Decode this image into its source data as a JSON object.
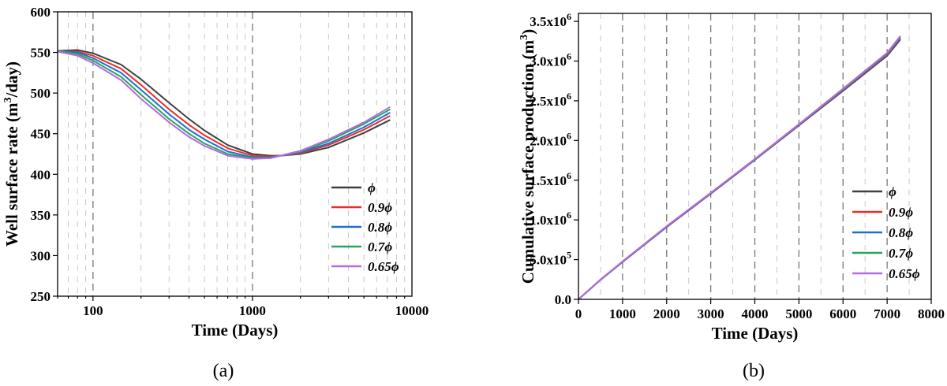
{
  "chart_data": [
    {
      "type": "line",
      "panel_label": "(a)",
      "xlabel": "Time (Days)",
      "ylabel_main": "Well surface rate (m",
      "ylabel_sup": "3",
      "ylabel_tail": "/day)",
      "xscale": "log",
      "xlim": [
        60,
        10000
      ],
      "ylim": [
        250,
        600
      ],
      "x_ticks": [
        100,
        1000,
        10000
      ],
      "x_tick_labels": [
        "100",
        "1000",
        "10000"
      ],
      "y_ticks": [
        250,
        300,
        350,
        400,
        450,
        500,
        550,
        600
      ],
      "y_tick_labels": [
        "250",
        "300",
        "350",
        "400",
        "450",
        "500",
        "550",
        "600"
      ],
      "grid": "vertical dashed",
      "legend_position": "bottom-right",
      "series": [
        {
          "name": "ϕ",
          "color": "#404040",
          "x": [
            60,
            80,
            100,
            150,
            200,
            300,
            400,
            500,
            700,
            1000,
            1300,
            1500,
            2000,
            3000,
            5000,
            7300
          ],
          "y": [
            552,
            553,
            549,
            535,
            517,
            488,
            468,
            454,
            436,
            425,
            423,
            423,
            425,
            433,
            451,
            467
          ]
        },
        {
          "name": "0.9ϕ",
          "color": "#e8302a",
          "x": [
            60,
            80,
            100,
            150,
            200,
            300,
            400,
            500,
            700,
            1000,
            1300,
            1500,
            2000,
            3000,
            5000,
            7300
          ],
          "y": [
            552,
            551,
            546,
            530,
            510,
            480,
            461,
            448,
            432,
            423,
            422,
            423,
            426,
            436,
            455,
            472
          ]
        },
        {
          "name": "0.8ϕ",
          "color": "#1f6fd1",
          "x": [
            60,
            80,
            100,
            150,
            200,
            300,
            400,
            500,
            700,
            1000,
            1300,
            1500,
            2000,
            3000,
            5000,
            7300
          ],
          "y": [
            552,
            550,
            543,
            525,
            504,
            474,
            455,
            443,
            428,
            421,
            421,
            423,
            427,
            438,
            458,
            476
          ]
        },
        {
          "name": "0.7ϕ",
          "color": "#2ca25f",
          "x": [
            60,
            80,
            100,
            150,
            200,
            300,
            400,
            500,
            700,
            1000,
            1300,
            1500,
            2000,
            3000,
            5000,
            7300
          ],
          "y": [
            552,
            548,
            540,
            520,
            498,
            468,
            450,
            438,
            425,
            420,
            420,
            423,
            428,
            441,
            462,
            480
          ]
        },
        {
          "name": "0.65ϕ",
          "color": "#b36be3",
          "x": [
            60,
            80,
            100,
            150,
            200,
            300,
            400,
            500,
            700,
            1000,
            1300,
            1500,
            2000,
            3000,
            5000,
            7300
          ],
          "y": [
            551,
            546,
            537,
            516,
            493,
            464,
            446,
            435,
            423,
            419,
            420,
            423,
            429,
            443,
            464,
            483
          ]
        }
      ]
    },
    {
      "type": "line",
      "panel_label": "(b)",
      "xlabel": "Time (Days)",
      "ylabel_main": "Cumulative surface production (m",
      "ylabel_sup": "3",
      "ylabel_tail": ")",
      "xlim": [
        0,
        8000
      ],
      "ylim": [
        0,
        3600000
      ],
      "x_ticks": [
        0,
        1000,
        2000,
        3000,
        4000,
        5000,
        6000,
        7000,
        8000
      ],
      "x_tick_labels": [
        "0",
        "1000",
        "2000",
        "3000",
        "4000",
        "5000",
        "6000",
        "7000",
        "8000"
      ],
      "y_ticks": [
        0,
        500000,
        1000000,
        1500000,
        2000000,
        2500000,
        3000000,
        3500000
      ],
      "y_tick_labels": [
        {
          "mant": "0.0",
          "exp": ""
        },
        {
          "mant": "5.0x10",
          "exp": "5"
        },
        {
          "mant": "1.0x10",
          "exp": "6"
        },
        {
          "mant": "1.5x10",
          "exp": "6"
        },
        {
          "mant": "2.0x10",
          "exp": "6"
        },
        {
          "mant": "2.5x10",
          "exp": "6"
        },
        {
          "mant": "3.0x10",
          "exp": "6"
        },
        {
          "mant": "3.5x10",
          "exp": "6"
        }
      ],
      "grid": "vertical dashed",
      "legend_position": "bottom-right",
      "series": [
        {
          "name": "ϕ",
          "color": "#404040",
          "x": [
            0,
            500,
            1000,
            2000,
            3000,
            4000,
            5000,
            6000,
            7000,
            7300
          ],
          "y": [
            0,
            245000,
            470000,
            910000,
            1330000,
            1755000,
            2190000,
            2625000,
            3065000,
            3270000
          ]
        },
        {
          "name": "0.9ϕ",
          "color": "#e8302a",
          "x": [
            0,
            500,
            1000,
            2000,
            3000,
            4000,
            5000,
            6000,
            7000,
            7300
          ],
          "y": [
            0,
            246000,
            472000,
            913000,
            1333000,
            1758000,
            2194000,
            2632000,
            3075000,
            3285000
          ]
        },
        {
          "name": "0.8ϕ",
          "color": "#1f6fd1",
          "x": [
            0,
            500,
            1000,
            2000,
            3000,
            4000,
            5000,
            6000,
            7000,
            7300
          ],
          "y": [
            0,
            247000,
            474000,
            916000,
            1336000,
            1761000,
            2198000,
            2640000,
            3086000,
            3295000
          ]
        },
        {
          "name": "0.7ϕ",
          "color": "#2ca25f",
          "x": [
            0,
            500,
            1000,
            2000,
            3000,
            4000,
            5000,
            6000,
            7000,
            7300
          ],
          "y": [
            0,
            248000,
            476000,
            919000,
            1339000,
            1764000,
            2203000,
            2648000,
            3097000,
            3308000
          ]
        },
        {
          "name": "0.65ϕ",
          "color": "#b36be3",
          "x": [
            0,
            500,
            1000,
            2000,
            3000,
            4000,
            5000,
            6000,
            7000,
            7300
          ],
          "y": [
            0,
            249000,
            478000,
            921000,
            1341000,
            1767000,
            2207000,
            2653000,
            3104000,
            3316000
          ]
        }
      ]
    }
  ]
}
